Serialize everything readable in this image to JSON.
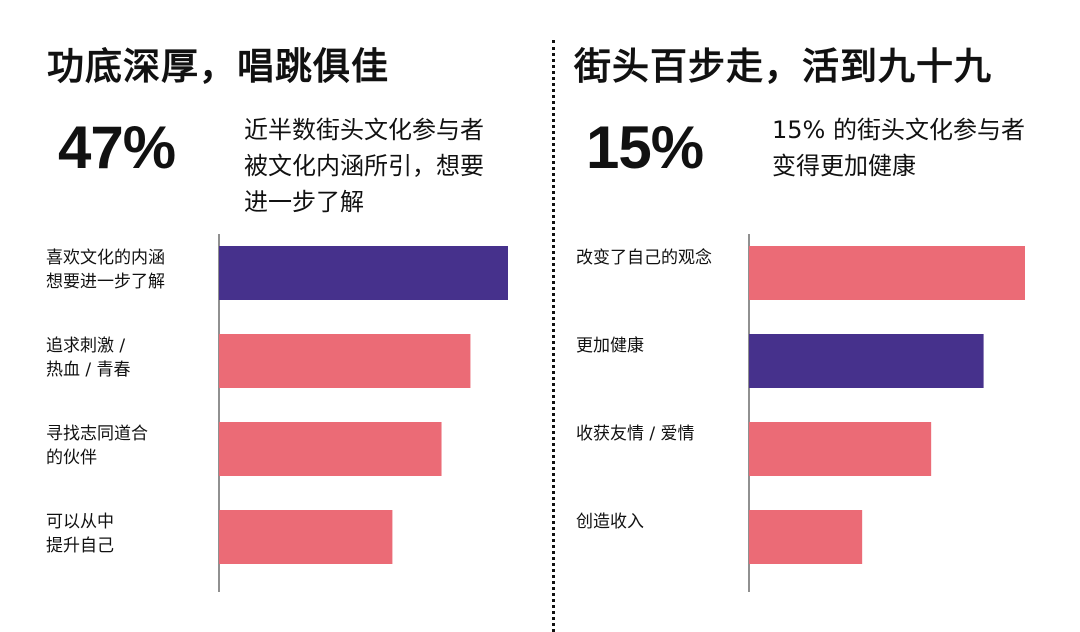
{
  "left": {
    "title": "功底深厚，唱跳俱佳",
    "stat": "47%",
    "desc": "近半数街头文化参与者\n被文化内涵所引，想要\n进一步了解"
  },
  "right": {
    "title": "街头百步走，活到九十九",
    "stat": "15%",
    "desc": "15% 的街头文化参与者\n变得更加健康"
  },
  "colors": {
    "purple": "#46318c",
    "pink": "#eb6b76",
    "text": "#111111"
  },
  "chart_data": [
    {
      "type": "bar",
      "orientation": "horizontal",
      "categories": [
        [
          "喜欢文化的内涵",
          "想要进一步了解"
        ],
        [
          "追求刺激 /",
          "热血 / 青春"
        ],
        [
          "寻找志同道合",
          "的伙伴"
        ],
        [
          "可以从中",
          "提升自己"
        ]
      ],
      "values": [
        100,
        87,
        77,
        60
      ],
      "colors": [
        "#46318c",
        "#eb6b76",
        "#eb6b76",
        "#eb6b76"
      ],
      "xlim": [
        0,
        100
      ]
    },
    {
      "type": "bar",
      "orientation": "horizontal",
      "categories": [
        [
          "改变了自己的观念"
        ],
        [
          "更加健康"
        ],
        [
          "收获友情 / 爱情"
        ],
        [
          "创造收入"
        ]
      ],
      "values": [
        100,
        85,
        66,
        41
      ],
      "colors": [
        "#eb6b76",
        "#46318c",
        "#eb6b76",
        "#eb6b76"
      ],
      "xlim": [
        0,
        100
      ]
    }
  ]
}
